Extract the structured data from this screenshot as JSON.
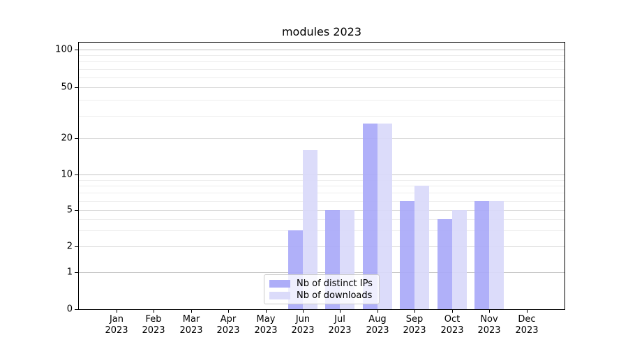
{
  "chart_data": {
    "type": "bar",
    "title": "modules 2023",
    "categories": [
      "Jan",
      "Feb",
      "Mar",
      "Apr",
      "May",
      "Jun",
      "Jul",
      "Aug",
      "Sep",
      "Oct",
      "Nov",
      "Dec"
    ],
    "x_year_line": "2023",
    "series": [
      {
        "name": "Nb of distinct IPs",
        "color": "#a9a9f8",
        "values": [
          0,
          0,
          0,
          0,
          0,
          3,
          5,
          26,
          6,
          4,
          6,
          0
        ]
      },
      {
        "name": "Nb of downloads",
        "color": "#d9d9fa",
        "values": [
          0,
          0,
          0,
          0,
          0,
          16,
          5,
          26,
          8,
          5,
          6,
          0
        ]
      }
    ],
    "yscale": "symlog",
    "ylim": [
      0,
      115
    ],
    "yticks": [
      0,
      1,
      2,
      5,
      10,
      20,
      50,
      100
    ],
    "minor_gridlines": [
      3,
      4,
      6,
      7,
      8,
      9,
      30,
      40,
      60,
      70,
      80,
      90
    ],
    "grid": "horizontal",
    "legend": {
      "position": "lower center"
    },
    "colors": {
      "axis": "#000000",
      "grid_major": "#c4c4c4",
      "grid_labeled": "#dadada",
      "grid_minor": "#ededed",
      "background": "#ffffff"
    }
  }
}
